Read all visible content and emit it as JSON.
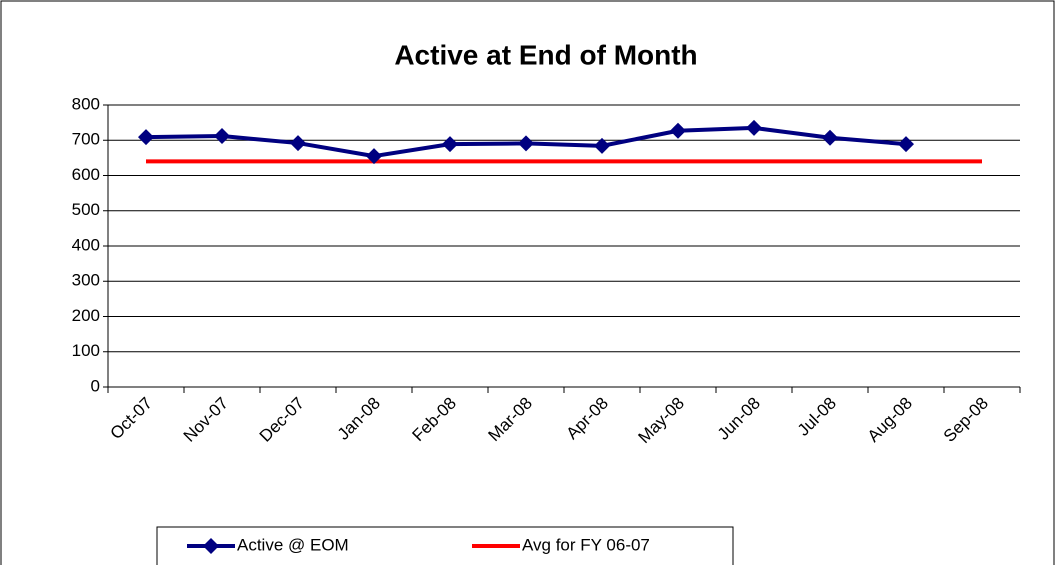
{
  "chart_data": {
    "type": "line",
    "title": "Active at End of Month",
    "categories": [
      "Oct-07",
      "Nov-07",
      "Dec-07",
      "Jan-08",
      "Feb-08",
      "Mar-08",
      "Apr-08",
      "May-08",
      "Jun-08",
      "Jul-08",
      "Aug-08",
      "Sep-08"
    ],
    "series": [
      {
        "name": "Active @ EOM",
        "color": "#000080",
        "marker": "diamond",
        "values": [
          709,
          712,
          692,
          655,
          689,
          691,
          684,
          727,
          735,
          707,
          689,
          null
        ]
      },
      {
        "name": "Avg for FY 06-07",
        "color": "#ff0000",
        "values": [
          640,
          640,
          640,
          640,
          640,
          640,
          640,
          640,
          640,
          640,
          640,
          640
        ]
      }
    ],
    "ylim": [
      0,
      800
    ],
    "yticks": [
      0,
      100,
      200,
      300,
      400,
      500,
      600,
      700,
      800
    ],
    "grid": true
  }
}
